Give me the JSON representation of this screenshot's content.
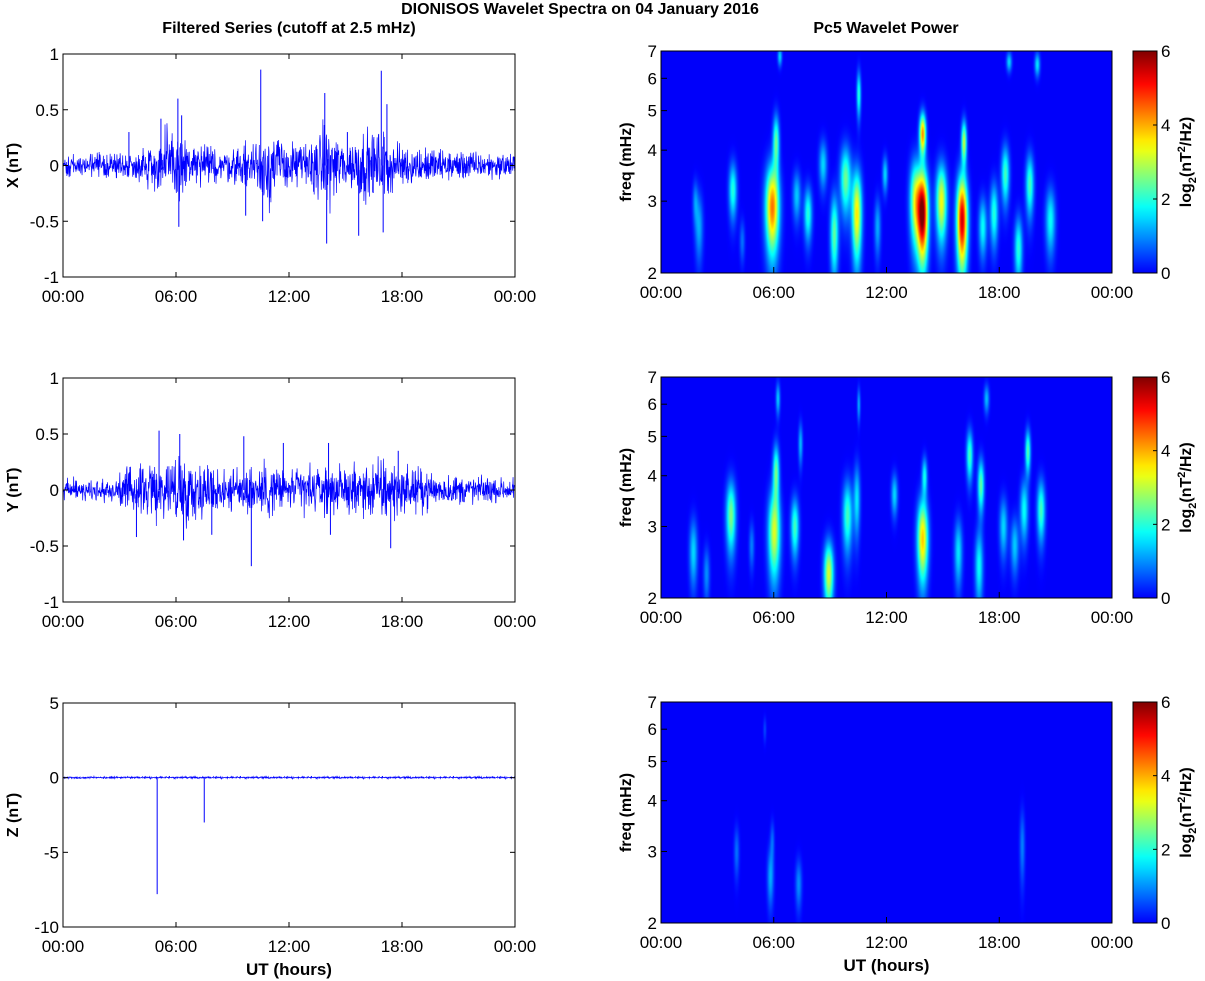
{
  "figure": {
    "title": "DIONISOS Wavelet Spectra on 04 January 2016",
    "left_column_title": "Filtered Series (cutoff at 2.5 mHz)",
    "right_column_title": "Pc5 Wavelet Power"
  },
  "chart_data": [
    {
      "type": "line",
      "component": "X",
      "ylabel": "X (nT)",
      "xlabel": "",
      "x_ticks": [
        "00:00",
        "06:00",
        "12:00",
        "18:00",
        "00:00"
      ],
      "xlim_hours": [
        0,
        24
      ],
      "ylim": [
        -1,
        1
      ],
      "y_ticks": [
        "1",
        "0.5",
        "0",
        "-0.5",
        "-1"
      ],
      "y_tick_values": [
        1,
        0.5,
        0,
        -0.5,
        -1
      ],
      "line_color": "#0000ff",
      "noise_envelope": [
        [
          0,
          0.07
        ],
        [
          2,
          0.09
        ],
        [
          4,
          0.1
        ],
        [
          5,
          0.22
        ],
        [
          6,
          0.3
        ],
        [
          7,
          0.15
        ],
        [
          9,
          0.12
        ],
        [
          10,
          0.18
        ],
        [
          11,
          0.3
        ],
        [
          12,
          0.15
        ],
        [
          13,
          0.18
        ],
        [
          14,
          0.3
        ],
        [
          15,
          0.18
        ],
        [
          16,
          0.25
        ],
        [
          17,
          0.25
        ],
        [
          18,
          0.15
        ],
        [
          20,
          0.12
        ],
        [
          22,
          0.1
        ],
        [
          24,
          0.09
        ]
      ],
      "spikes": [
        [
          5.2,
          0.42
        ],
        [
          6.1,
          0.6
        ],
        [
          6.15,
          -0.55
        ],
        [
          6.3,
          0.45
        ],
        [
          10.5,
          0.86
        ],
        [
          10.6,
          -0.5
        ],
        [
          11.5,
          0.15
        ],
        [
          13.9,
          0.65
        ],
        [
          14.0,
          -0.7
        ],
        [
          15.1,
          0.3
        ],
        [
          15.7,
          -0.63
        ],
        [
          16.9,
          0.85
        ],
        [
          17.0,
          -0.6
        ],
        [
          17.2,
          0.55
        ],
        [
          9.7,
          -0.45
        ],
        [
          3.5,
          0.3
        ]
      ]
    },
    {
      "type": "line",
      "component": "Y",
      "ylabel": "Y (nT)",
      "xlabel": "",
      "x_ticks": [
        "00:00",
        "06:00",
        "12:00",
        "18:00",
        "00:00"
      ],
      "xlim_hours": [
        0,
        24
      ],
      "ylim": [
        -1,
        1
      ],
      "y_ticks": [
        "1",
        "0.5",
        "0",
        "-0.5",
        "-1"
      ],
      "y_tick_values": [
        1,
        0.5,
        0,
        -0.5,
        -1
      ],
      "line_color": "#0000ff",
      "noise_envelope": [
        [
          0,
          0.07
        ],
        [
          2,
          0.09
        ],
        [
          3,
          0.12
        ],
        [
          4,
          0.18
        ],
        [
          5,
          0.22
        ],
        [
          6,
          0.25
        ],
        [
          7,
          0.2
        ],
        [
          9,
          0.15
        ],
        [
          10,
          0.2
        ],
        [
          11,
          0.2
        ],
        [
          12,
          0.15
        ],
        [
          13,
          0.18
        ],
        [
          15,
          0.15
        ],
        [
          16,
          0.2
        ],
        [
          17,
          0.25
        ],
        [
          18,
          0.18
        ],
        [
          20,
          0.12
        ],
        [
          22,
          0.1
        ],
        [
          24,
          0.08
        ]
      ],
      "spikes": [
        [
          3.9,
          -0.42
        ],
        [
          5.1,
          0.53
        ],
        [
          6.2,
          0.5
        ],
        [
          6.4,
          -0.45
        ],
        [
          9.6,
          0.48
        ],
        [
          10.0,
          -0.68
        ],
        [
          11.7,
          0.42
        ],
        [
          14.1,
          0.42
        ],
        [
          14.2,
          -0.4
        ],
        [
          17.4,
          -0.52
        ],
        [
          17.8,
          0.35
        ],
        [
          7.9,
          -0.4
        ]
      ]
    },
    {
      "type": "line",
      "component": "Z",
      "ylabel": "Z (nT)",
      "xlabel": "UT (hours)",
      "x_ticks": [
        "00:00",
        "06:00",
        "12:00",
        "18:00",
        "00:00"
      ],
      "xlim_hours": [
        0,
        24
      ],
      "ylim": [
        -10,
        5
      ],
      "y_ticks": [
        "5",
        "0",
        "-5",
        "-10"
      ],
      "y_tick_values": [
        5,
        0,
        -5,
        -10
      ],
      "line_color": "#0000ff",
      "noise_envelope": [
        [
          0,
          0.06
        ],
        [
          24,
          0.06
        ]
      ],
      "spikes": [
        [
          5.0,
          -7.8
        ],
        [
          7.5,
          -3.0
        ]
      ]
    },
    {
      "type": "heatmap",
      "component": "X",
      "ylabel": "freq (mHz)",
      "xlabel": "",
      "x_ticks": [
        "00:00",
        "06:00",
        "12:00",
        "18:00",
        "00:00"
      ],
      "y_scale": "log",
      "ylim_mhz": [
        2,
        7
      ],
      "y_ticks": [
        "7",
        "6",
        "5",
        "4",
        "3",
        "2"
      ],
      "y_tick_values": [
        7,
        6,
        5,
        4,
        3,
        2
      ],
      "colorbar_label": "log2(nT^2/Hz)",
      "colorbar_ticks": [
        "6",
        "4",
        "2",
        "0"
      ],
      "colorbar_range": [
        0,
        6
      ],
      "colormap": "jet",
      "background_color": "#00008f",
      "blobs": [
        [
          2.0,
          2.6,
          0.15,
          0.35,
          1.2
        ],
        [
          3.8,
          3.2,
          0.15,
          0.35,
          2.0
        ],
        [
          5.9,
          2.9,
          0.25,
          0.5,
          4.4
        ],
        [
          6.1,
          4.2,
          0.12,
          0.45,
          2.4
        ],
        [
          6.3,
          6.8,
          0.08,
          0.25,
          1.5
        ],
        [
          7.2,
          3.1,
          0.15,
          0.3,
          1.4
        ],
        [
          7.8,
          2.8,
          0.15,
          0.3,
          2.0
        ],
        [
          8.6,
          3.7,
          0.15,
          0.35,
          1.5
        ],
        [
          9.2,
          2.5,
          0.15,
          0.4,
          2.4
        ],
        [
          9.8,
          3.4,
          0.2,
          0.45,
          2.5
        ],
        [
          10.4,
          2.8,
          0.18,
          0.5,
          3.6
        ],
        [
          10.5,
          5.5,
          0.08,
          0.5,
          2.0
        ],
        [
          11.5,
          2.6,
          0.12,
          0.3,
          1.2
        ],
        [
          11.9,
          3.5,
          0.1,
          0.25,
          1.5
        ],
        [
          13.5,
          3.0,
          0.2,
          0.5,
          3.0
        ],
        [
          13.9,
          2.8,
          0.2,
          0.5,
          6.0
        ],
        [
          13.9,
          4.4,
          0.12,
          0.35,
          4.2
        ],
        [
          14.9,
          3.0,
          0.2,
          0.45,
          3.4
        ],
        [
          16.0,
          2.7,
          0.2,
          0.5,
          5.5
        ],
        [
          16.1,
          4.2,
          0.1,
          0.35,
          3.0
        ],
        [
          17.1,
          2.6,
          0.15,
          0.3,
          1.8
        ],
        [
          17.7,
          2.8,
          0.15,
          0.35,
          2.0
        ],
        [
          18.3,
          3.5,
          0.15,
          0.4,
          2.2
        ],
        [
          18.5,
          6.6,
          0.1,
          0.25,
          1.5
        ],
        [
          19.0,
          2.3,
          0.15,
          0.3,
          2.0
        ],
        [
          19.6,
          3.3,
          0.15,
          0.4,
          2.2
        ],
        [
          20.0,
          6.5,
          0.1,
          0.3,
          1.6
        ],
        [
          20.7,
          2.7,
          0.18,
          0.35,
          1.8
        ],
        [
          1.8,
          3.0,
          0.1,
          0.25,
          0.9
        ],
        [
          4.3,
          2.4,
          0.1,
          0.2,
          0.8
        ]
      ]
    },
    {
      "type": "heatmap",
      "component": "Y",
      "ylabel": "freq (mHz)",
      "xlabel": "",
      "x_ticks": [
        "00:00",
        "06:00",
        "12:00",
        "18:00",
        "00:00"
      ],
      "y_scale": "log",
      "ylim_mhz": [
        2,
        7
      ],
      "y_ticks": [
        "7",
        "6",
        "5",
        "4",
        "3",
        "2"
      ],
      "y_tick_values": [
        7,
        6,
        5,
        4,
        3,
        2
      ],
      "colorbar_label": "log2(nT^2/Hz)",
      "colorbar_ticks": [
        "6",
        "4",
        "2",
        "0"
      ],
      "colorbar_range": [
        0,
        6
      ],
      "colormap": "jet",
      "background_color": "#00008f",
      "blobs": [
        [
          1.7,
          2.6,
          0.15,
          0.35,
          1.5
        ],
        [
          2.4,
          2.3,
          0.12,
          0.25,
          1.0
        ],
        [
          3.7,
          3.2,
          0.18,
          0.45,
          2.6
        ],
        [
          6.0,
          2.9,
          0.22,
          0.5,
          3.2
        ],
        [
          6.1,
          4.1,
          0.12,
          0.45,
          2.4
        ],
        [
          6.2,
          6.2,
          0.08,
          0.4,
          1.4
        ],
        [
          7.1,
          3.0,
          0.15,
          0.35,
          2.2
        ],
        [
          7.4,
          4.8,
          0.08,
          0.4,
          1.3
        ],
        [
          8.9,
          2.3,
          0.18,
          0.3,
          3.2
        ],
        [
          9.9,
          3.2,
          0.18,
          0.45,
          2.2
        ],
        [
          10.4,
          3.5,
          0.12,
          0.5,
          1.6
        ],
        [
          10.5,
          6.0,
          0.06,
          0.4,
          1.2
        ],
        [
          12.4,
          3.6,
          0.12,
          0.3,
          1.5
        ],
        [
          13.9,
          2.8,
          0.2,
          0.45,
          3.8
        ],
        [
          14.0,
          4.0,
          0.1,
          0.3,
          1.8
        ],
        [
          15.8,
          2.6,
          0.15,
          0.35,
          1.6
        ],
        [
          16.4,
          4.5,
          0.12,
          0.45,
          2.2
        ],
        [
          16.9,
          2.4,
          0.15,
          0.35,
          1.8
        ],
        [
          17.0,
          3.8,
          0.12,
          0.4,
          2.4
        ],
        [
          17.3,
          6.2,
          0.1,
          0.35,
          1.3
        ],
        [
          18.2,
          3.0,
          0.15,
          0.35,
          1.5
        ],
        [
          18.8,
          2.7,
          0.15,
          0.3,
          1.4
        ],
        [
          19.3,
          3.3,
          0.15,
          0.4,
          1.8
        ],
        [
          19.5,
          4.6,
          0.1,
          0.4,
          2.3
        ],
        [
          20.2,
          3.3,
          0.15,
          0.4,
          2.2
        ],
        [
          4.8,
          2.7,
          0.1,
          0.25,
          0.9
        ]
      ]
    },
    {
      "type": "heatmap",
      "component": "Z",
      "ylabel": "freq (mHz)",
      "xlabel": "UT (hours)",
      "x_ticks": [
        "00:00",
        "06:00",
        "12:00",
        "18:00",
        "00:00"
      ],
      "y_scale": "log",
      "ylim_mhz": [
        2,
        7
      ],
      "y_ticks": [
        "7",
        "6",
        "5",
        "4",
        "3",
        "2"
      ],
      "y_tick_values": [
        7,
        6,
        5,
        4,
        3,
        2
      ],
      "colorbar_label": "log2(nT^2/Hz)",
      "colorbar_ticks": [
        "6",
        "4",
        "2",
        "0"
      ],
      "colorbar_range": [
        0,
        6
      ],
      "colormap": "jet",
      "background_color": "#00008f",
      "blobs": [
        [
          4.0,
          3.0,
          0.1,
          0.3,
          0.8
        ],
        [
          5.8,
          2.6,
          0.12,
          0.3,
          1.2
        ],
        [
          5.9,
          3.2,
          0.08,
          0.25,
          0.7
        ],
        [
          7.3,
          2.5,
          0.12,
          0.25,
          1.0
        ],
        [
          19.2,
          3.1,
          0.1,
          0.45,
          0.9
        ],
        [
          5.5,
          6.0,
          0.06,
          0.3,
          0.5
        ]
      ]
    }
  ]
}
